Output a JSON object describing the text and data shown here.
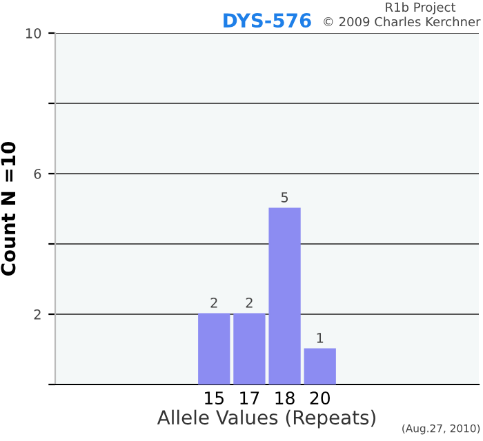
{
  "chart_data": {
    "type": "bar",
    "title": "DYS-576",
    "xlabel": "Allele Values (Repeats)",
    "ylabel": "Count N =10",
    "annotations": [
      "R1b Project",
      "© 2009 Charles Kerchner",
      "(Aug.27, 2010)"
    ],
    "categories": [
      null,
      null,
      null,
      null,
      "15",
      "17",
      "18",
      "20",
      null,
      null,
      null,
      null
    ],
    "values": [
      null,
      null,
      null,
      null,
      2,
      2,
      5,
      1,
      null,
      null,
      null,
      null
    ],
    "color": "#8c8cf2",
    "data_labels": true,
    "grid": "y",
    "ylim": [
      0,
      10
    ],
    "yticks": [
      {
        "value": 0,
        "label": null
      },
      2,
      {
        "value": 4,
        "label": null
      },
      6,
      {
        "value": 8,
        "label": null
      },
      10
    ]
  }
}
